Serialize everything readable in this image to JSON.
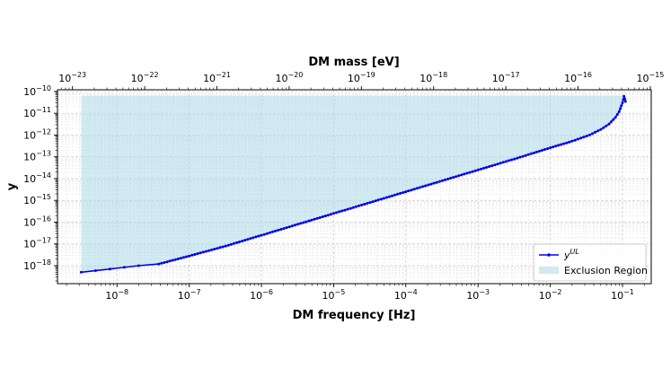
{
  "chart_data": {
    "type": "line",
    "title": "",
    "xlabel": "DM frequency [Hz]",
    "ylabel": "y",
    "x2label": "DM mass [eV]",
    "xscale": "log",
    "yscale": "log",
    "xlim": [
      1.5e-09,
      0.25
    ],
    "ylim": [
      1.5e-19,
      1.2e-10
    ],
    "x2lim": [
      6.2e-24,
      1.03e-15
    ],
    "grid": true,
    "legend_position": "bottom-right",
    "x_tick_labels": [
      "10",
      "10",
      "10",
      "10",
      "10",
      "10",
      "10",
      "10"
    ],
    "x_tick_exps": [
      "−8",
      "−7",
      "−6",
      "−5",
      "−4",
      "−3",
      "−2",
      "−1"
    ],
    "x_tick_values": [
      1e-08,
      1e-07,
      1e-06,
      1e-05,
      0.0001,
      0.001,
      0.01,
      0.1
    ],
    "y_tick_exps": [
      "−18",
      "−17",
      "−16",
      "−15",
      "−14",
      "−13",
      "−12",
      "−11",
      "−10"
    ],
    "y_tick_values": [
      1e-18,
      1e-17,
      1e-16,
      1e-15,
      1e-14,
      1e-13,
      1e-12,
      1e-11,
      1e-10
    ],
    "x2_tick_exps": [
      "−23",
      "−22",
      "−21",
      "−20",
      "−19",
      "−18",
      "−17",
      "−16",
      "−15"
    ],
    "x2_tick_values": [
      1e-23,
      1e-22,
      1e-21,
      1e-20,
      1e-19,
      1e-18,
      1e-17,
      1e-16,
      1e-15
    ],
    "series": [
      {
        "name": "y",
        "name_sup": "UL",
        "color": "#0000ee",
        "x": [
          3.2e-09,
          2e-08,
          3.8e-08,
          1e-07,
          3.2e-07,
          1e-06,
          3.2e-06,
          1e-05,
          3.2e-05,
          0.0001,
          0.00032,
          0.001,
          0.0032,
          0.01,
          0.02,
          0.035,
          0.05,
          0.065,
          0.08,
          0.09,
          0.1,
          0.105,
          0.11
        ],
        "y": [
          5e-19,
          1e-18,
          1.2e-18,
          2.8e-18,
          8e-18,
          2.5e-17,
          8e-17,
          2.5e-16,
          8e-16,
          2.5e-15,
          8e-15,
          2.5e-14,
          8e-14,
          2.6e-13,
          5.2e-13,
          1e-12,
          1.8e-12,
          3.2e-12,
          6.5e-12,
          1.2e-11,
          3e-11,
          6e-11,
          3.5e-11
        ]
      }
    ],
    "exclusion_region": {
      "name": "Exclusion Region",
      "color": "#add8e6",
      "x_start": 3.2e-09,
      "y_top": 6.5e-11
    }
  }
}
